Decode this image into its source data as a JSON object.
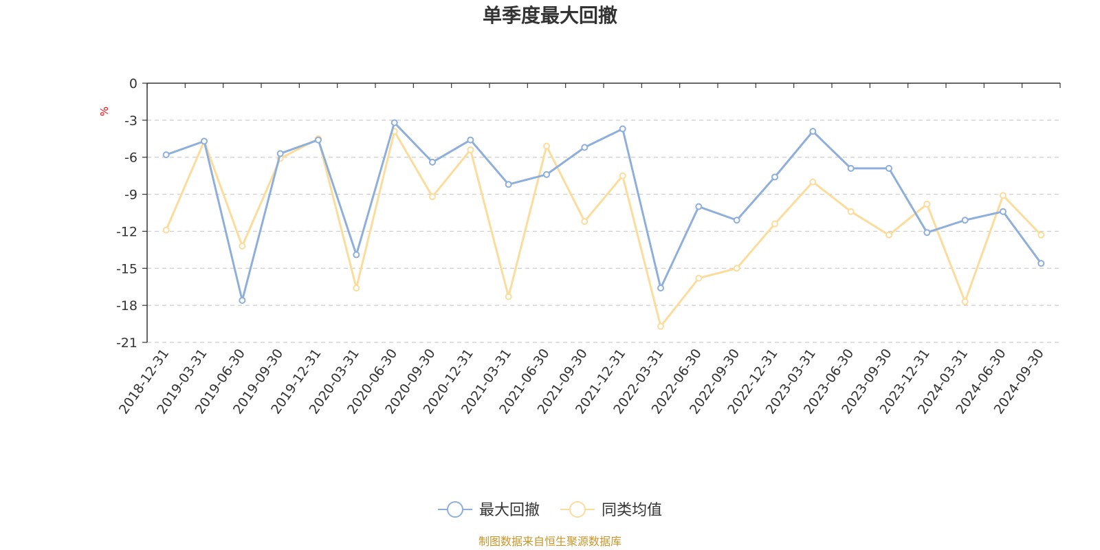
{
  "chart_data": {
    "type": "line",
    "title": "单季度最大回撤",
    "ylabel": "%",
    "ylim": [
      -21,
      0
    ],
    "yticks": [
      0,
      -3,
      -6,
      -9,
      -12,
      -15,
      -18,
      -21
    ],
    "grid": true,
    "legend_position": "bottom-center",
    "categories": [
      "2018-12-31",
      "2019-03-31",
      "2019-06-30",
      "2019-09-30",
      "2019-12-31",
      "2020-03-31",
      "2020-06-30",
      "2020-09-30",
      "2020-12-31",
      "2021-03-31",
      "2021-06-30",
      "2021-09-30",
      "2021-12-31",
      "2022-03-31",
      "2022-06-30",
      "2022-09-30",
      "2022-12-31",
      "2023-03-31",
      "2023-06-30",
      "2023-09-30",
      "2023-12-31",
      "2024-03-31",
      "2024-06-30",
      "2024-09-30"
    ],
    "series": [
      {
        "name": "最大回撤",
        "color": "#8eaedb",
        "values": [
          -5.8,
          -4.7,
          -17.6,
          -5.7,
          -4.6,
          -13.9,
          -3.2,
          -6.4,
          -4.6,
          -8.2,
          -7.4,
          -5.2,
          -3.7,
          -16.6,
          -10.0,
          -11.1,
          -7.6,
          -3.9,
          -6.9,
          -6.9,
          -12.1,
          -11.1,
          -10.4,
          -14.6
        ]
      },
      {
        "name": "同类均值",
        "color": "#fcdc9b",
        "values": [
          -11.9,
          -4.7,
          -13.2,
          -6.1,
          -4.5,
          -16.6,
          -3.9,
          -9.2,
          -5.4,
          -17.3,
          -5.1,
          -11.2,
          -7.5,
          -19.7,
          -15.8,
          -15.0,
          -11.4,
          -8.0,
          -10.4,
          -12.3,
          -9.8,
          -17.7,
          -9.1,
          -12.3
        ]
      }
    ],
    "source_note": "制图数据来自恒生聚源数据库",
    "source_color": "#c8962a",
    "unit_color": "#ff0000"
  }
}
